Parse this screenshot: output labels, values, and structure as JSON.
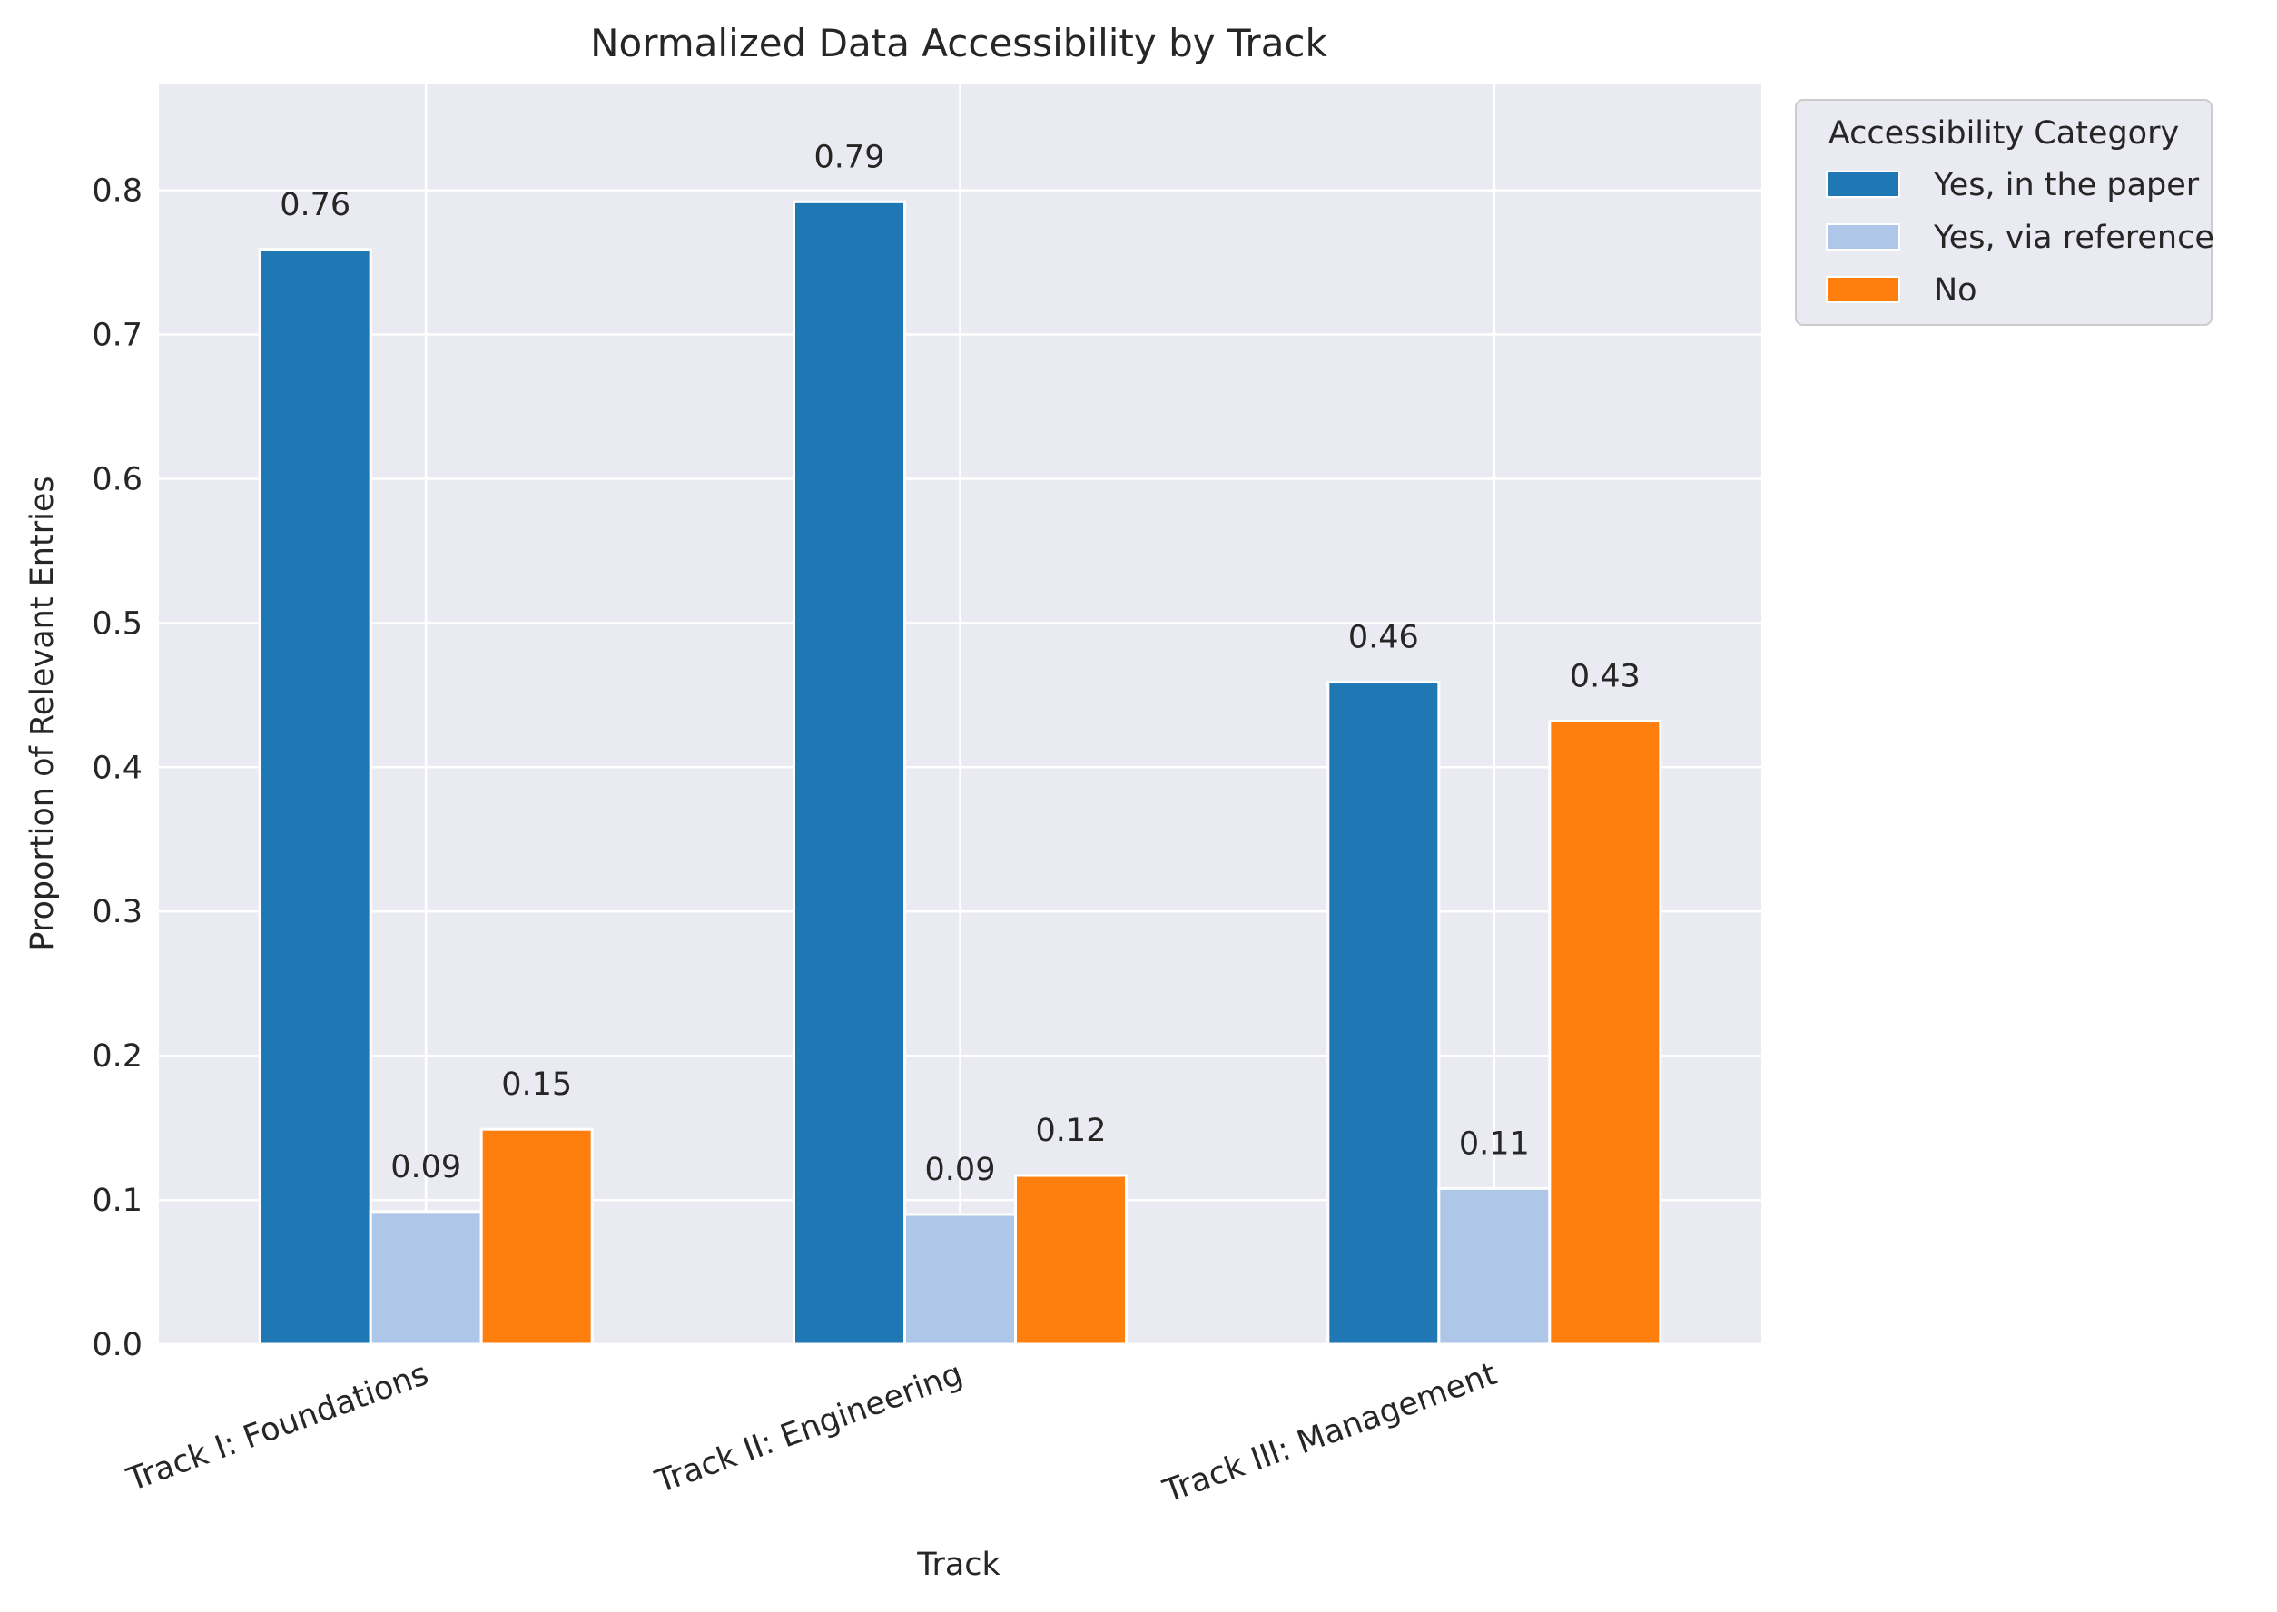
{
  "chart_data": {
    "type": "bar",
    "title": "Normalized Data Accessibility by Track",
    "xlabel": "Track",
    "ylabel": "Proportion of Relevant Entries",
    "categories": [
      "Track I: Foundations",
      "Track II: Engineering",
      "Track III: Management"
    ],
    "series": [
      {
        "name": "Yes, in the paper",
        "color": "#1f77b4",
        "values": [
          0.759,
          0.792,
          0.459
        ]
      },
      {
        "name": "Yes, via reference",
        "color": "#aec7e8",
        "values": [
          0.092,
          0.09,
          0.108
        ]
      },
      {
        "name": "No",
        "color": "#ff7f0e",
        "values": [
          0.149,
          0.117,
          0.432
        ]
      }
    ],
    "data_labels": [
      [
        "0.76",
        "0.79",
        "0.46"
      ],
      [
        "0.09",
        "0.09",
        "0.11"
      ],
      [
        "0.15",
        "0.12",
        "0.43"
      ]
    ],
    "ylim": [
      0,
      0.874
    ],
    "yticks": [
      0.0,
      0.1,
      0.2,
      0.3,
      0.4,
      0.5,
      0.6,
      0.7,
      0.8
    ],
    "ytick_labels": [
      "0.0",
      "0.1",
      "0.2",
      "0.3",
      "0.4",
      "0.5",
      "0.6",
      "0.7",
      "0.8"
    ],
    "grid": true,
    "legend": {
      "title": "Accessibility Category",
      "placement": "outside-top-right"
    },
    "plot_background": "#eaeaf2",
    "grid_color": "#ffffff"
  }
}
